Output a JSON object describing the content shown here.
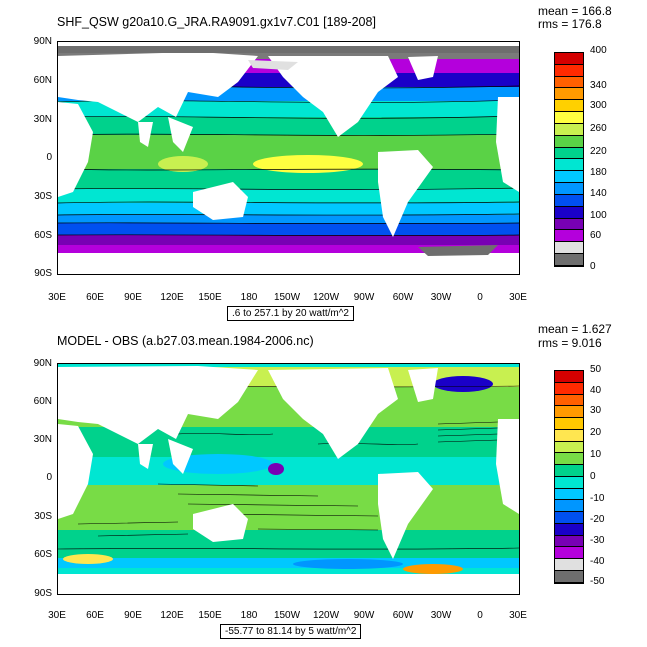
{
  "panels": [
    {
      "title": "SHF_QSW g20a10.G_JRA.RA9091.gx1v7.C01 [189-208]",
      "mean": "mean = 166.8",
      "rms": "rms = 176.8",
      "range_text": ".6 to 257.1 by 20 watt/m^2",
      "colorbar_labels": [
        "400",
        "340",
        "300",
        "260",
        "220",
        "180",
        "140",
        "100",
        "60",
        "0"
      ],
      "colorbar_colors": [
        "#d40000",
        "#ff2a00",
        "#ff6000",
        "#ff9a00",
        "#ffd000",
        "#ffff40",
        "#c8f050",
        "#5ad246",
        "#00d28c",
        "#00e6d2",
        "#00c8ff",
        "#0096ff",
        "#0050f0",
        "#1a00c8",
        "#7800b4",
        "#b400dc",
        "#e0e0e0",
        "#6e6e6e"
      ]
    },
    {
      "title": "MODEL - OBS (a.b27.03.mean.1984-2006.nc)",
      "mean": "mean = 1.627",
      "rms": "rms = 9.016",
      "range_text": "-55.77 to 81.14 by 5 watt/m^2",
      "colorbar_labels": [
        "50",
        "40",
        "30",
        "20",
        "10",
        "0",
        "-10",
        "-20",
        "-30",
        "-40",
        "-50"
      ],
      "colorbar_colors": [
        "#d40000",
        "#ff2a00",
        "#ff6000",
        "#ff9a00",
        "#ffc800",
        "#ffe650",
        "#c8f050",
        "#78dc46",
        "#00d28c",
        "#00e6d2",
        "#00c8ff",
        "#0096ff",
        "#0050f0",
        "#1a00c8",
        "#7800b4",
        "#b400dc",
        "#e0e0e0",
        "#6e6e6e"
      ]
    }
  ],
  "lat_labels": [
    "90N",
    "60N",
    "30N",
    "0",
    "30S",
    "60S",
    "90S"
  ],
  "lon_labels": [
    "30E",
    "60E",
    "90E",
    "120E",
    "150E",
    "180",
    "150W",
    "120W",
    "90W",
    "60W",
    "30W",
    "0",
    "30E"
  ]
}
